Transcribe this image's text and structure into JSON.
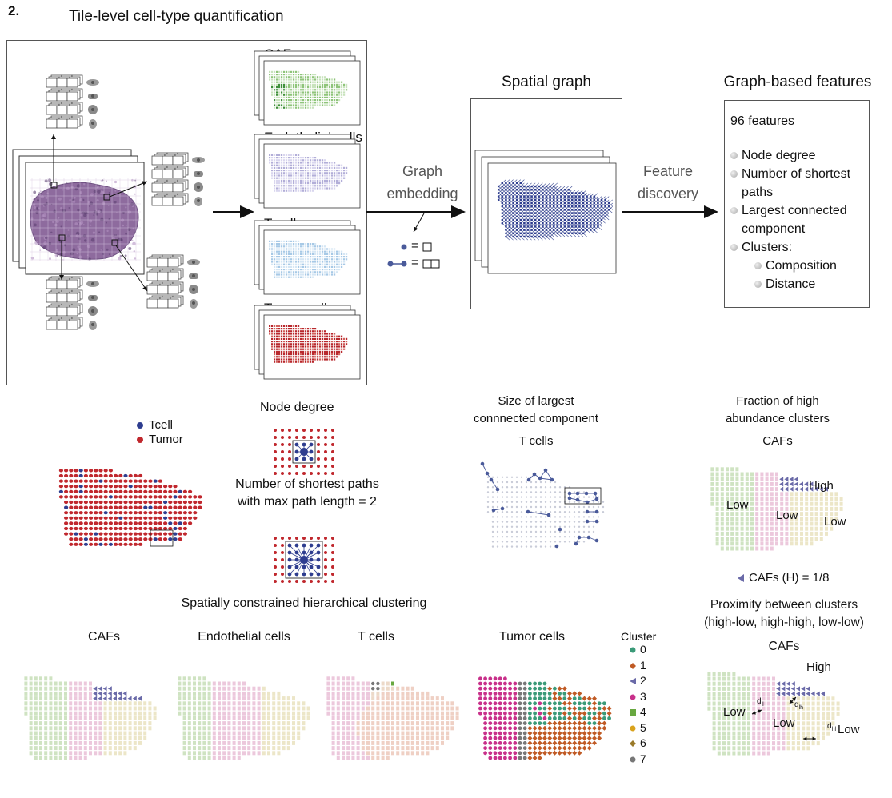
{
  "panel_number": "2.",
  "title": "Tile-level cell-type quantification",
  "cell_types": {
    "cafs": "CAFs",
    "endothelial": "Endothelial cells",
    "tcells": "T cells",
    "tumor": "Tumor cells"
  },
  "graph_embedding": {
    "line1": "Graph",
    "line2": "embedding",
    "eq1": "=",
    "eq2": "="
  },
  "spatial_graph": "Spatial graph",
  "feature_discovery": {
    "line1": "Feature",
    "line2": "discovery"
  },
  "graph_features": {
    "title": "Graph-based features",
    "count": "96 features",
    "items": [
      "Node degree",
      "Number of shortest",
      "paths",
      "Largest connected",
      "component",
      "Clusters:",
      "Composition",
      "Distance"
    ]
  },
  "legend_top": {
    "tcell": "Tcell",
    "tumor": "Tumor",
    "tcell_color": "#2e3d8f",
    "tumor_color": "#c0272d"
  },
  "node_degree": "Node degree",
  "shortest_paths": {
    "line1": "Number of shortest paths",
    "line2": "with max path length = 2"
  },
  "largest_component": {
    "line1": "Size of largest",
    "line2": "connnected component",
    "sub": "T cells"
  },
  "fraction_high": {
    "line1": "Fraction of high",
    "line2": "abundance clusters",
    "sub": "CAFs",
    "high": "High",
    "low1": "Low",
    "low2": "Low",
    "low3": "Low",
    "caption": "CAFs (H) = 1/8"
  },
  "clustering": {
    "title": "Spatially constrained hierarchical clustering",
    "panels": [
      "CAFs",
      "Endothelial cells",
      "T cells",
      "Tumor cells"
    ],
    "legend_title": "Cluster",
    "clusters": [
      {
        "id": "0",
        "color": "#3a9a78",
        "shape": "circle"
      },
      {
        "id": "1",
        "color": "#c05a24",
        "shape": "diamond"
      },
      {
        "id": "2",
        "color": "#6a6aa8",
        "shape": "triangle"
      },
      {
        "id": "3",
        "color": "#c8308a",
        "shape": "circle"
      },
      {
        "id": "4",
        "color": "#68a840",
        "shape": "square"
      },
      {
        "id": "5",
        "color": "#d9a21c",
        "shape": "circle"
      },
      {
        "id": "6",
        "color": "#9a7a2a",
        "shape": "diamond"
      },
      {
        "id": "7",
        "color": "#777777",
        "shape": "circle"
      }
    ]
  },
  "proximity": {
    "line1": "Proximity between clusters",
    "line2": "(high-low, high-high, low-low)",
    "sub": "CAFs",
    "high": "High",
    "low1": "Low",
    "low2": "Low",
    "low3": "Low",
    "d1": "d",
    "d1sub": "lh",
    "d2": "d",
    "d2sub": "ll",
    "d3": "d",
    "d3sub": "hl"
  }
}
